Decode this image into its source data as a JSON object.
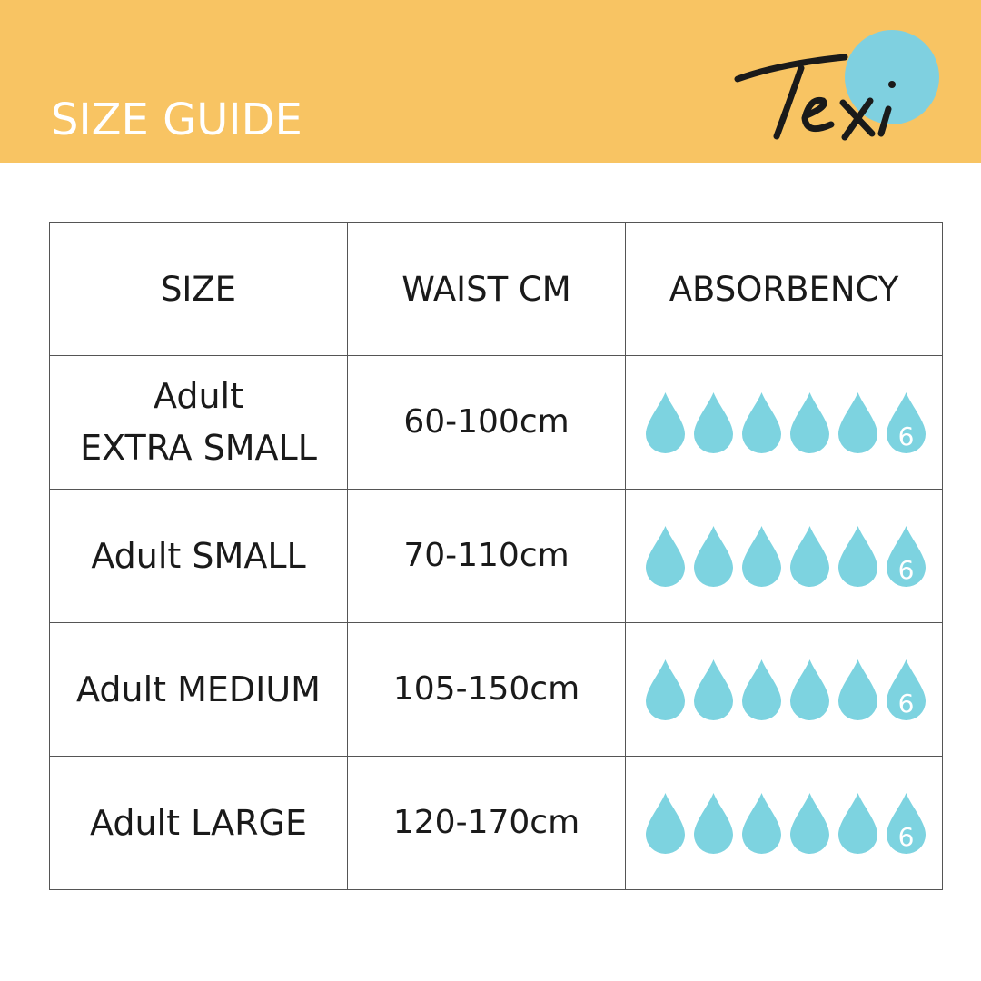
{
  "header": {
    "title": "SIZE GUIDE",
    "logo_text": "Texi",
    "background": "#F8C463",
    "logo_dot_color": "#7FD0E0"
  },
  "table": {
    "columns": [
      "SIZE",
      "WAIST CM",
      "ABSORBENCY"
    ],
    "drop_color": "#7DD3E0",
    "rows": [
      {
        "size_line1": "Adult",
        "size_line2": "EXTRA SMALL",
        "waist": "60-100cm",
        "absorbency": 6,
        "absorbency_label": "6"
      },
      {
        "size_line1": "Adult SMALL",
        "size_line2": "",
        "waist": "70-110cm",
        "absorbency": 6,
        "absorbency_label": "6"
      },
      {
        "size_line1": "Adult MEDIUM",
        "size_line2": "",
        "waist": "105-150cm",
        "absorbency": 6,
        "absorbency_label": "6"
      },
      {
        "size_line1": "Adult LARGE",
        "size_line2": "",
        "waist": "120-170cm",
        "absorbency": 6,
        "absorbency_label": "6"
      }
    ]
  }
}
